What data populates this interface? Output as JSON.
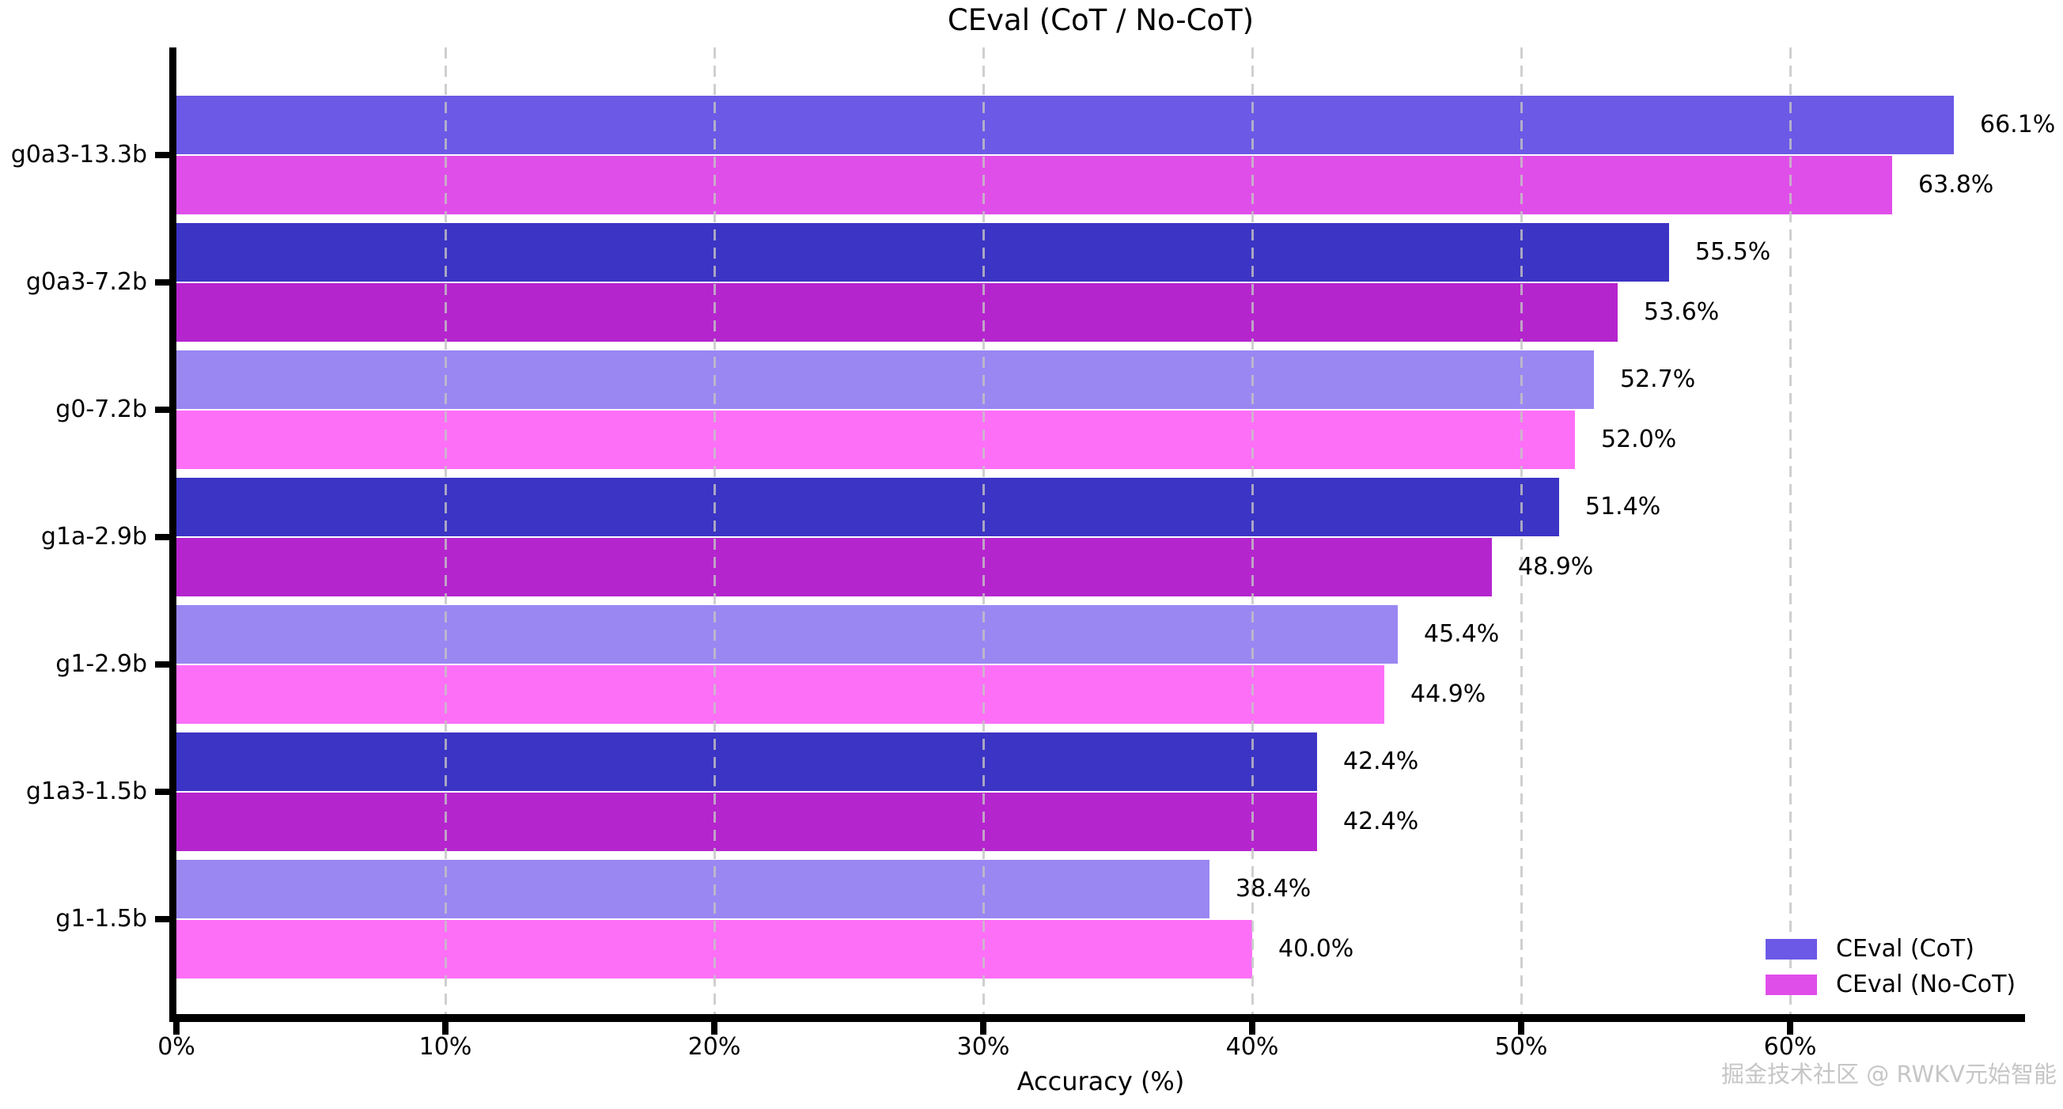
{
  "title": "CEval (CoT / No-CoT)",
  "watermark": "掘金技术社区 @ RWKV元始智能",
  "chart_data": {
    "type": "bar",
    "orientation": "horizontal",
    "title": "CEval (CoT / No-CoT)",
    "xlabel": "Accuracy (%)",
    "ylabel": "",
    "xlim": [
      0,
      68.7
    ],
    "x_tick_values": [
      0,
      10,
      20,
      30,
      40,
      50,
      60
    ],
    "x_tick_labels": [
      "0%",
      "10%",
      "20%",
      "30%",
      "40%",
      "50%",
      "60%"
    ],
    "grid": "vertical dashed lines, drawn over bars",
    "legend_position": "lower right",
    "categories": [
      "g0a3-13.3b",
      "g0a3-7.2b",
      "g0-7.2b",
      "g1a-2.9b",
      "g1-2.9b",
      "g1a3-1.5b",
      "g1-1.5b"
    ],
    "series": [
      {
        "name": "CEval (CoT)",
        "values": [
          66.1,
          55.5,
          52.7,
          51.4,
          45.4,
          42.4,
          38.4
        ],
        "value_labels": [
          "66.1%",
          "55.5%",
          "52.7%",
          "51.4%",
          "45.4%",
          "42.4%",
          "38.4%"
        ],
        "bar_colors": [
          "#6C59E6",
          "#3C34C4",
          "#9A87F2",
          "#3C34C4",
          "#9A87F2",
          "#3C34C4",
          "#9A87F2"
        ]
      },
      {
        "name": "CEval (No-CoT)",
        "values": [
          63.8,
          53.6,
          52.0,
          48.9,
          44.9,
          42.4,
          40.0
        ],
        "value_labels": [
          "63.8%",
          "53.6%",
          "52.0%",
          "48.9%",
          "44.9%",
          "42.4%",
          "40.0%"
        ],
        "bar_colors": [
          "#E04EE9",
          "#B525CE",
          "#FE6FF8",
          "#B525CE",
          "#FE6FF8",
          "#B525CE",
          "#FE6FF8"
        ]
      }
    ]
  },
  "legend": {
    "items": [
      {
        "label": "CEval (CoT)",
        "color": "#6C59E6"
      },
      {
        "label": "CEval (No-CoT)",
        "color": "#E04EE9"
      }
    ]
  },
  "colors": {
    "background": "#ffffff",
    "axis": "#000000",
    "grid": "#c3c3c3",
    "text": "#000000",
    "watermark": "#c6c6c6"
  }
}
